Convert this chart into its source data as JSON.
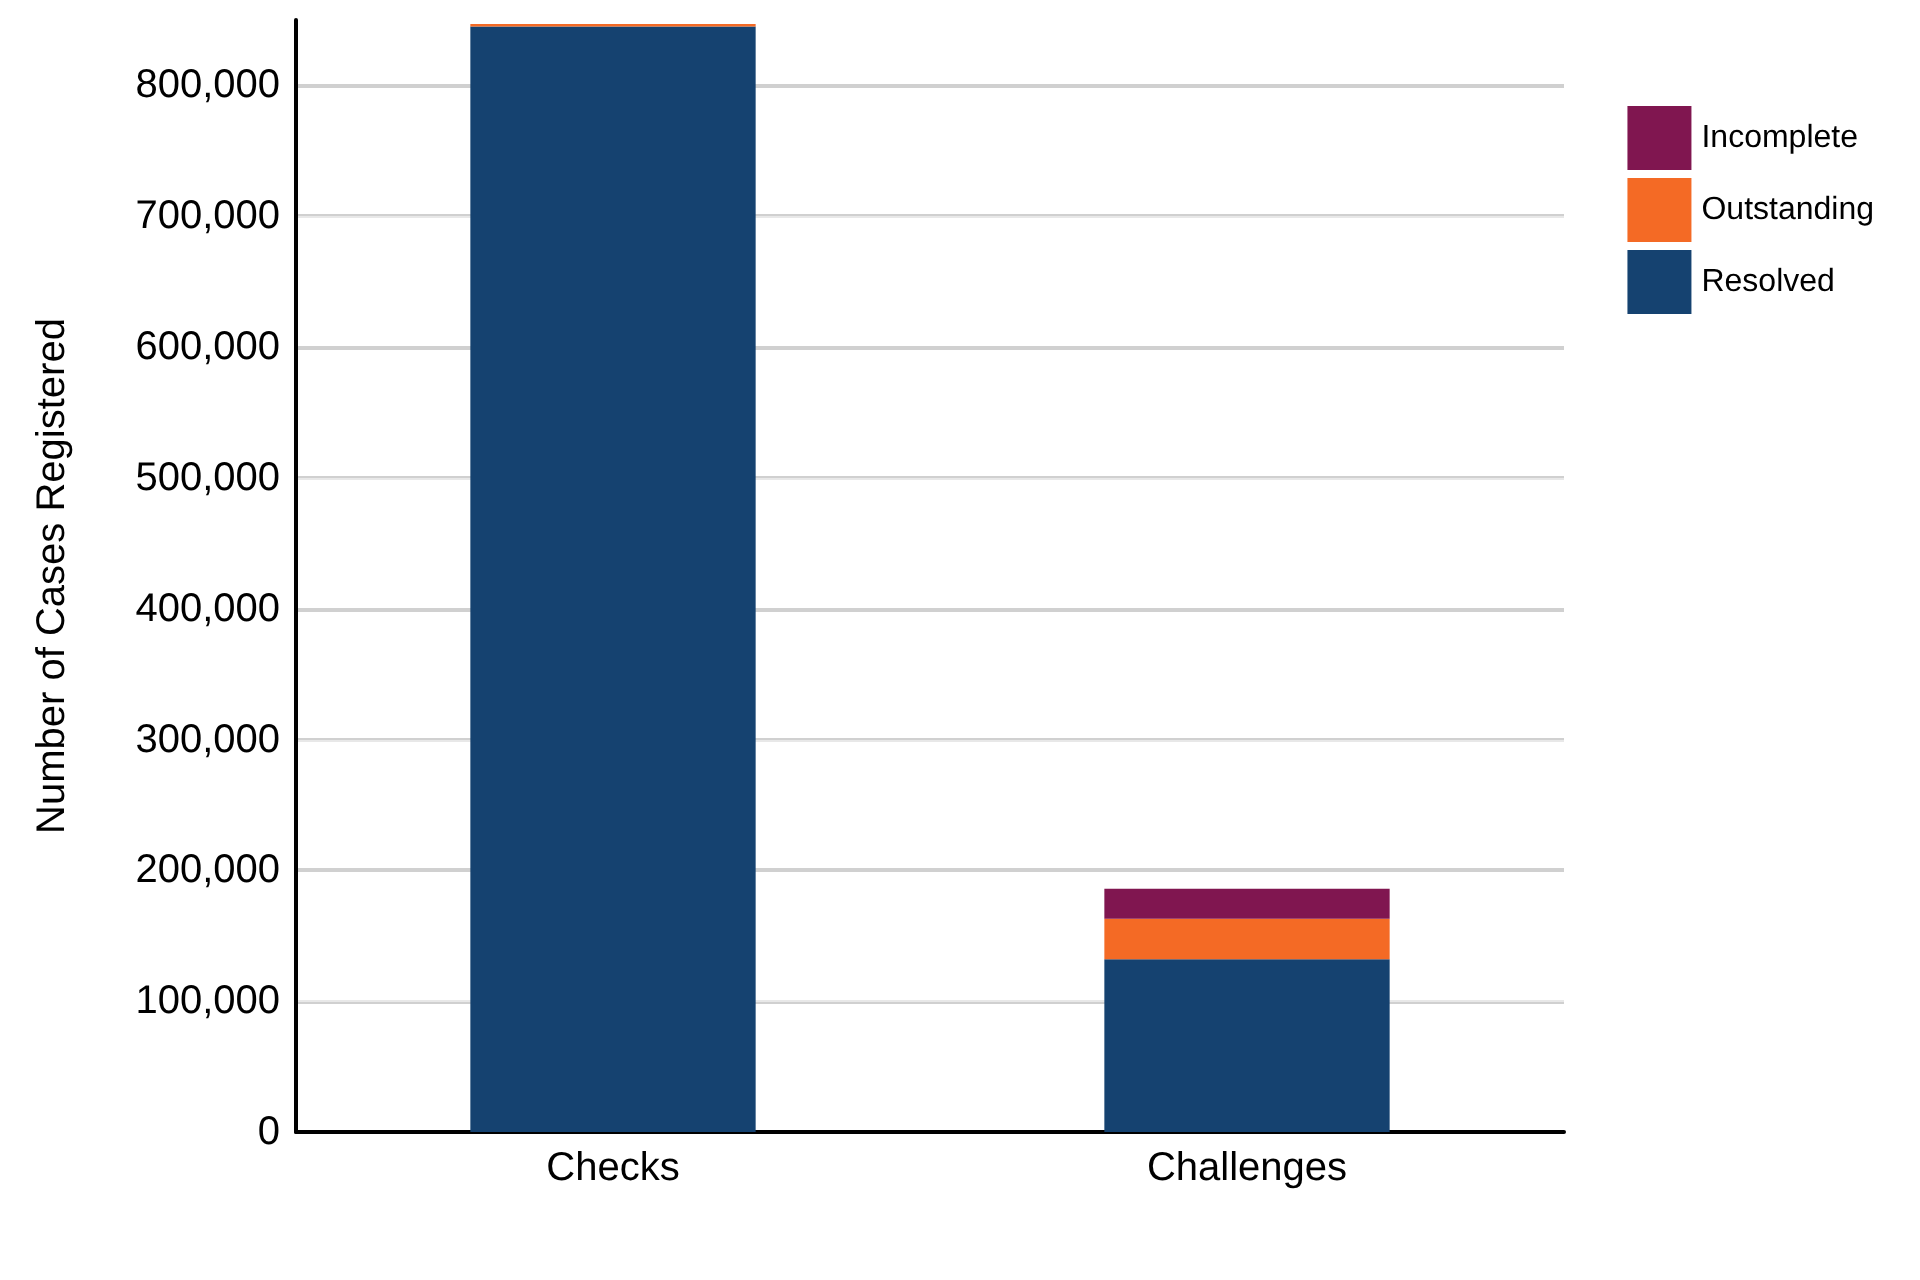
{
  "chart_data": {
    "type": "bar",
    "ylabel": "Number of Cases Registered",
    "categories": [
      "Checks",
      "Challenges"
    ],
    "series": [
      {
        "name": "Resolved",
        "color": "#154270",
        "values": [
          845000,
          132000
        ]
      },
      {
        "name": "Outstanding",
        "color": "#f46a25",
        "values": [
          2000,
          31000
        ]
      },
      {
        "name": "Incomplete",
        "color": "#801650",
        "values": [
          0,
          23000
        ]
      }
    ],
    "stacked": true,
    "ylim": [
      0,
      850000
    ],
    "yticks": [
      0,
      {
        "value": 100000,
        "label": "100,000"
      },
      {
        "value": 200000,
        "label": "200,000"
      },
      {
        "value": 300000,
        "label": "300,000"
      },
      {
        "value": 400000,
        "label": "400,000"
      },
      {
        "value": 500000,
        "label": "500,000"
      },
      {
        "value": 600000,
        "label": "600,000"
      },
      {
        "value": 700000,
        "label": "700,000"
      },
      {
        "value": 800000,
        "label": "800,000"
      }
    ],
    "grid": "y",
    "legend": "right"
  }
}
